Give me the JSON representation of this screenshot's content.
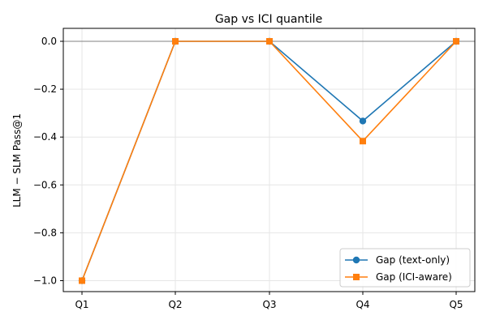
{
  "chart_data": {
    "type": "line",
    "title": "Gap vs ICI quantile",
    "xlabel": "",
    "ylabel": "LLM − SLM Pass@1",
    "categories": [
      "Q1",
      "Q2",
      "Q3",
      "Q4",
      "Q5"
    ],
    "ylim": [
      -1.05,
      0.05
    ],
    "yticks": [
      0.0,
      -0.2,
      -0.4,
      -0.6,
      -0.8,
      -1.0
    ],
    "ytick_labels": [
      "0.0",
      "−0.2",
      "−0.4",
      "−0.6",
      "−0.8",
      "−1.0"
    ],
    "grid": true,
    "reference_line": 0.0,
    "legend_position": "lower-right",
    "series": [
      {
        "name": "Gap (text-only)",
        "values": [
          -1.0,
          0.0,
          0.0,
          -0.333,
          0.0
        ],
        "color": "#1f77b4",
        "marker": "circle"
      },
      {
        "name": "Gap (ICI-aware)",
        "values": [
          -1.0,
          0.0,
          0.0,
          -0.417,
          0.0
        ],
        "color": "#ff7f0e",
        "marker": "square"
      }
    ]
  }
}
